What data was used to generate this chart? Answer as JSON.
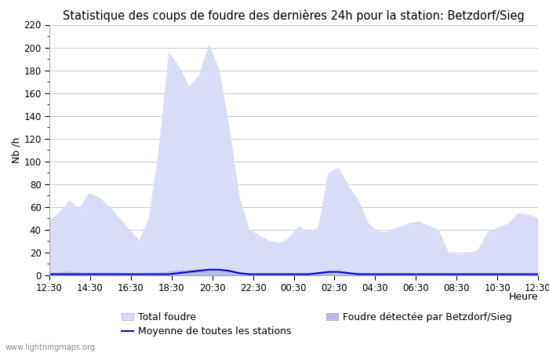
{
  "title": "Statistique des coups de foudre des dernières 24h pour la station: Betzdorf/Sieg",
  "ylabel": "Nb /h",
  "xlabel": "Heure",
  "watermark": "www.lightningmaps.org",
  "ylim": [
    0,
    220
  ],
  "x_tick_labels": [
    "12:30",
    "14:30",
    "16:30",
    "18:30",
    "20:30",
    "22:30",
    "00:30",
    "02:30",
    "04:30",
    "06:30",
    "08:30",
    "10:30",
    "12:30"
  ],
  "total_foudre_color": "#d8dcf5",
  "detected_foudre_color": "#b8bce8",
  "moyenne_color": "#0000cc",
  "background_color": "#ffffff",
  "grid_color": "#cccccc",
  "title_fontsize": 10.5,
  "label_fontsize": 9,
  "tick_fontsize": 8.5,
  "total_foudre": [
    48,
    55,
    65,
    58,
    72,
    68,
    60,
    50,
    40,
    30,
    50,
    110,
    195,
    183,
    165,
    175,
    202,
    180,
    130,
    70,
    40,
    35,
    30,
    28,
    32,
    43,
    38,
    42,
    90,
    94,
    78,
    65,
    45,
    38,
    38,
    42,
    45,
    47,
    43,
    40,
    20,
    18,
    19,
    22,
    38,
    42,
    45,
    54,
    53,
    50
  ],
  "detected_foudre": [
    2,
    2,
    3,
    2,
    2,
    2,
    2,
    2,
    1,
    1,
    2,
    2,
    3,
    4,
    4,
    5,
    5,
    4,
    3,
    2,
    1,
    1,
    1,
    1,
    1,
    1,
    1,
    2,
    3,
    3,
    2,
    2,
    1,
    1,
    1,
    1,
    1,
    1,
    1,
    1,
    1,
    1,
    1,
    1,
    1,
    1,
    1,
    1,
    1,
    1
  ],
  "moyenne": [
    1,
    1,
    1,
    1,
    1,
    1,
    1,
    1,
    1,
    1,
    1,
    1,
    1,
    2,
    3,
    4,
    5,
    5,
    4,
    2,
    1,
    1,
    1,
    1,
    1,
    1,
    1,
    2,
    3,
    3,
    2,
    1,
    1,
    1,
    1,
    1,
    1,
    1,
    1,
    1,
    1,
    1,
    1,
    1,
    1,
    1,
    1,
    1,
    1,
    1
  ]
}
